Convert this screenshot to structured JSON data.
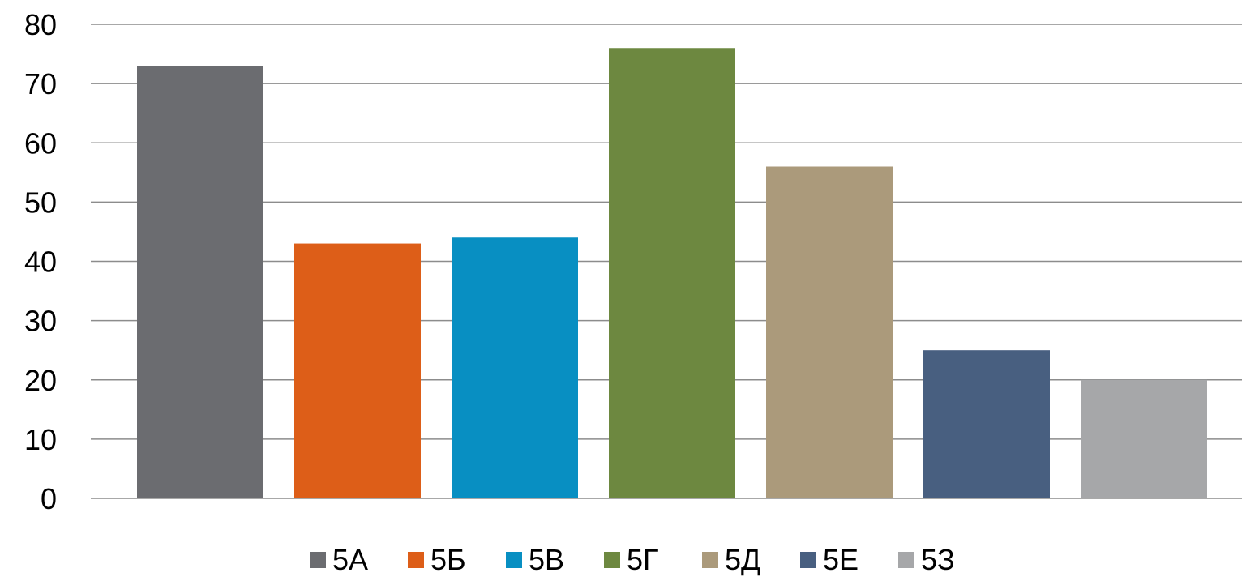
{
  "chart_data": {
    "type": "bar",
    "title": "",
    "xlabel": "",
    "ylabel": "",
    "ylim": [
      0,
      80
    ],
    "yticks": [
      0,
      10,
      20,
      30,
      40,
      50,
      60,
      70,
      80
    ],
    "grid": true,
    "legend_position": "bottom",
    "series": [
      {
        "name": "5А",
        "value": 73,
        "color": "#6b6c70"
      },
      {
        "name": "5Б",
        "value": 43,
        "color": "#dd5e18"
      },
      {
        "name": "5В",
        "value": 44,
        "color": "#088fc2"
      },
      {
        "name": "5Г",
        "value": 76,
        "color": "#6d8840"
      },
      {
        "name": "5Д",
        "value": 56,
        "color": "#ab9a7b"
      },
      {
        "name": "5Е",
        "value": 25,
        "color": "#485f80"
      },
      {
        "name": "5З",
        "value": 20,
        "color": "#a6a7a9"
      }
    ]
  }
}
